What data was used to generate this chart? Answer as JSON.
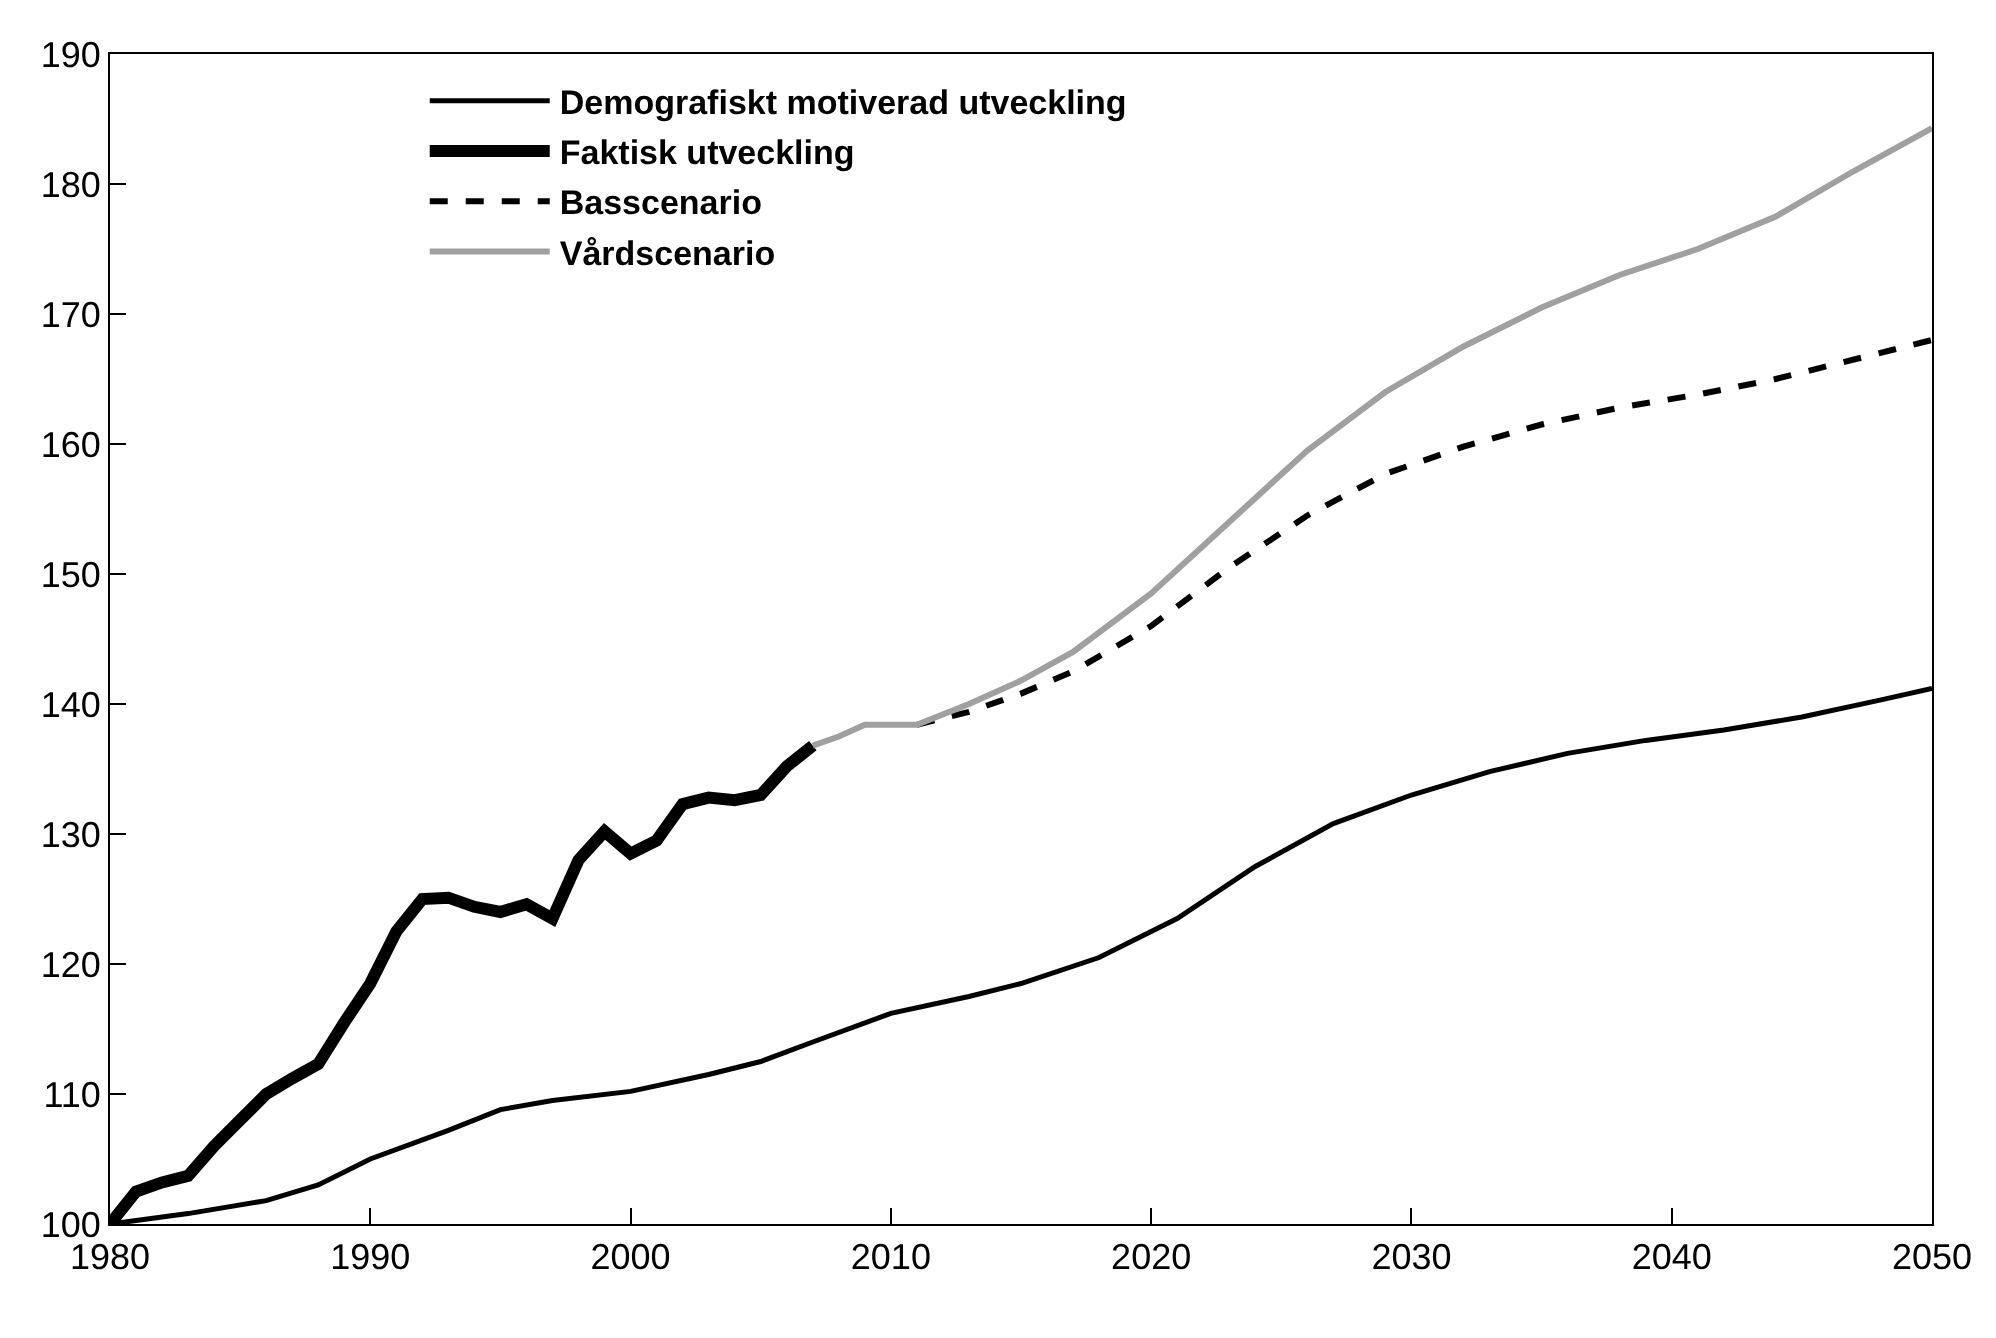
{
  "chart_data": {
    "type": "line",
    "xlim": [
      1980,
      2050
    ],
    "xticks": [
      1980,
      1990,
      2000,
      2010,
      2020,
      2030,
      2040,
      2050
    ],
    "ylim": [
      100,
      190
    ],
    "yticks": [
      100,
      110,
      120,
      130,
      140,
      150,
      160,
      170,
      180,
      190
    ],
    "grid": false,
    "legend": "top left",
    "marker": "none",
    "series": [
      {
        "name": "Demografiskt motiverad utveckling",
        "color": "#000000",
        "line_style": "solid",
        "x": [
          1980,
          1983,
          1986,
          1988,
          1990,
          1993,
          1995,
          1997,
          2000,
          2003,
          2005,
          2007,
          2010,
          2013,
          2015,
          2018,
          2021,
          2024,
          2027,
          2030,
          2033,
          2036,
          2039,
          2042,
          2045,
          2048,
          2050
        ],
        "values": [
          100,
          100.8,
          101.8,
          103,
          105,
          107.2,
          108.8,
          109.5,
          110.2,
          111.5,
          112.5,
          114,
          116.2,
          117.5,
          118.5,
          120.5,
          123.5,
          127.5,
          130.8,
          133,
          134.8,
          136.2,
          137.2,
          138,
          139,
          140.3,
          141.2
        ]
      },
      {
        "name": "Faktisk utveckling",
        "color": "#000000",
        "line_style": "solid",
        "x": [
          1980,
          1981,
          1982,
          1983,
          1984,
          1985,
          1986,
          1987,
          1988,
          1989,
          1990,
          1991,
          1992,
          1993,
          1994,
          1995,
          1996,
          1997,
          1998,
          1999,
          2000,
          2001,
          2002,
          2003,
          2004,
          2005,
          2006,
          2007
        ],
        "values": [
          100,
          102.5,
          103.2,
          103.7,
          106,
          108,
          110,
          111.2,
          112.3,
          115.5,
          118.5,
          122.5,
          125,
          125.1,
          124.4,
          124,
          124.6,
          123.5,
          128,
          130.2,
          128.5,
          129.5,
          132.3,
          132.8,
          132.6,
          133,
          135.2,
          136.8
        ]
      },
      {
        "name": "Basscenario",
        "color": "#000000",
        "line_style": "dashed",
        "x": [
          2011,
          2013,
          2015,
          2017,
          2020,
          2023,
          2026,
          2029,
          2032,
          2035,
          2038,
          2041,
          2044,
          2047,
          2050
        ],
        "values": [
          138.4,
          139.4,
          140.8,
          142.5,
          146,
          150.5,
          154.5,
          157.7,
          159.8,
          161.5,
          162.8,
          163.8,
          165,
          166.5,
          168
        ]
      },
      {
        "name": "Vårdscenario",
        "color": "#a0a0a0",
        "line_style": "solid",
        "x": [
          2007,
          2008,
          2009,
          2010,
          2011,
          2013,
          2015,
          2017,
          2020,
          2023,
          2026,
          2029,
          2032,
          2035,
          2038,
          2041,
          2044,
          2047,
          2050
        ],
        "values": [
          136.8,
          137.5,
          138.4,
          138.4,
          138.4,
          140,
          141.8,
          144,
          148.5,
          154,
          159.5,
          164,
          167.5,
          170.5,
          173,
          175,
          177.5,
          181,
          184.3
        ]
      }
    ]
  }
}
